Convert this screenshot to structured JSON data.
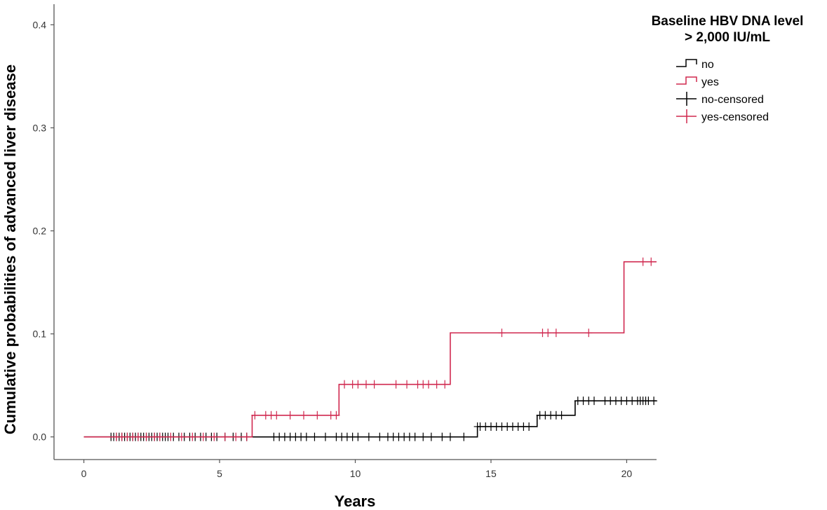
{
  "chart_data": {
    "type": "line",
    "xlabel": "Years",
    "ylabel": "Cumulative probabilities of advanced liver disease",
    "xlim": [
      -1.1,
      21.1
    ],
    "ylim": [
      -0.022,
      0.42
    ],
    "xticks": [
      0,
      5,
      10,
      15,
      20
    ],
    "xtick_labels": [
      "0",
      "5",
      "10",
      "15",
      "20"
    ],
    "yticks": [
      0.0,
      0.1,
      0.2,
      0.3,
      0.4
    ],
    "ytick_labels": [
      "0.0",
      "0.1",
      "0.2",
      "0.3",
      "0.4"
    ],
    "grid": false,
    "legend": {
      "title_line1": "Baseline HBV DNA level",
      "title_line2": "> 2,000 IU/mL",
      "placement": "top-right",
      "entries": [
        {
          "label": "no",
          "kind": "line",
          "color": "#000000"
        },
        {
          "label": "yes",
          "kind": "line",
          "color": "#d0284f"
        },
        {
          "label": "no-censored",
          "kind": "censor",
          "color": "#000000"
        },
        {
          "label": "yes-censored",
          "kind": "censor",
          "color": "#d0284f"
        }
      ]
    },
    "series": [
      {
        "name": "no",
        "color": "#000000",
        "steps": [
          [
            0,
            0.0
          ],
          [
            14.5,
            0.01
          ],
          [
            16.7,
            0.021
          ],
          [
            18.1,
            0.035
          ],
          [
            21.1,
            0.035
          ]
        ],
        "censored": [
          [
            1.0,
            0
          ],
          [
            1.1,
            0
          ],
          [
            1.2,
            0
          ],
          [
            1.3,
            0
          ],
          [
            1.4,
            0
          ],
          [
            1.5,
            0
          ],
          [
            1.6,
            0
          ],
          [
            1.7,
            0
          ],
          [
            1.8,
            0
          ],
          [
            1.9,
            0
          ],
          [
            2.0,
            0
          ],
          [
            2.1,
            0
          ],
          [
            2.2,
            0
          ],
          [
            2.3,
            0
          ],
          [
            2.4,
            0
          ],
          [
            2.5,
            0
          ],
          [
            2.6,
            0
          ],
          [
            2.7,
            0
          ],
          [
            2.8,
            0
          ],
          [
            2.9,
            0
          ],
          [
            3.0,
            0
          ],
          [
            3.1,
            0
          ],
          [
            3.3,
            0
          ],
          [
            3.5,
            0
          ],
          [
            3.7,
            0
          ],
          [
            3.9,
            0
          ],
          [
            4.1,
            0
          ],
          [
            4.3,
            0
          ],
          [
            4.5,
            0
          ],
          [
            4.7,
            0
          ],
          [
            4.9,
            0
          ],
          [
            5.2,
            0
          ],
          [
            5.5,
            0
          ],
          [
            5.8,
            0
          ],
          [
            6.0,
            0
          ],
          [
            7.0,
            0
          ],
          [
            7.2,
            0
          ],
          [
            7.4,
            0
          ],
          [
            7.6,
            0
          ],
          [
            7.8,
            0
          ],
          [
            8.0,
            0
          ],
          [
            8.2,
            0
          ],
          [
            8.5,
            0
          ],
          [
            8.9,
            0
          ],
          [
            9.3,
            0
          ],
          [
            9.5,
            0
          ],
          [
            9.7,
            0
          ],
          [
            9.9,
            0
          ],
          [
            10.1,
            0
          ],
          [
            10.5,
            0
          ],
          [
            10.9,
            0
          ],
          [
            11.2,
            0
          ],
          [
            11.4,
            0
          ],
          [
            11.6,
            0
          ],
          [
            11.8,
            0
          ],
          [
            12.0,
            0
          ],
          [
            12.2,
            0
          ],
          [
            12.5,
            0
          ],
          [
            12.8,
            0
          ],
          [
            13.2,
            0
          ],
          [
            13.5,
            0
          ],
          [
            14.0,
            0
          ],
          [
            14.5,
            0.01
          ],
          [
            14.6,
            0.01
          ],
          [
            14.8,
            0.01
          ],
          [
            15.0,
            0.01
          ],
          [
            15.2,
            0.01
          ],
          [
            15.4,
            0.01
          ],
          [
            15.6,
            0.01
          ],
          [
            15.8,
            0.01
          ],
          [
            16.0,
            0.01
          ],
          [
            16.2,
            0.01
          ],
          [
            16.4,
            0.01
          ],
          [
            16.8,
            0.021
          ],
          [
            17.0,
            0.021
          ],
          [
            17.2,
            0.021
          ],
          [
            17.4,
            0.021
          ],
          [
            17.6,
            0.021
          ],
          [
            18.2,
            0.035
          ],
          [
            18.4,
            0.035
          ],
          [
            18.6,
            0.035
          ],
          [
            18.8,
            0.035
          ],
          [
            19.2,
            0.035
          ],
          [
            19.4,
            0.035
          ],
          [
            19.6,
            0.035
          ],
          [
            19.8,
            0.035
          ],
          [
            20.0,
            0.035
          ],
          [
            20.2,
            0.035
          ],
          [
            20.4,
            0.035
          ],
          [
            20.5,
            0.035
          ],
          [
            20.6,
            0.035
          ],
          [
            20.7,
            0.035
          ],
          [
            20.8,
            0.035
          ],
          [
            21.0,
            0.035
          ]
        ]
      },
      {
        "name": "yes",
        "color": "#d0284f",
        "steps": [
          [
            0,
            0.0
          ],
          [
            6.2,
            0.021
          ],
          [
            9.4,
            0.051
          ],
          [
            13.5,
            0.101
          ],
          [
            19.9,
            0.17
          ],
          [
            21.1,
            0.17
          ]
        ],
        "censored": [
          [
            1.2,
            0
          ],
          [
            1.4,
            0
          ],
          [
            1.6,
            0
          ],
          [
            1.8,
            0
          ],
          [
            2.0,
            0
          ],
          [
            2.3,
            0
          ],
          [
            2.6,
            0
          ],
          [
            2.8,
            0
          ],
          [
            3.2,
            0
          ],
          [
            3.6,
            0
          ],
          [
            4.0,
            0
          ],
          [
            4.4,
            0
          ],
          [
            4.8,
            0
          ],
          [
            5.2,
            0
          ],
          [
            5.6,
            0
          ],
          [
            6.0,
            0
          ],
          [
            6.3,
            0.021
          ],
          [
            6.7,
            0.021
          ],
          [
            6.9,
            0.021
          ],
          [
            7.1,
            0.021
          ],
          [
            7.6,
            0.021
          ],
          [
            8.1,
            0.021
          ],
          [
            8.6,
            0.021
          ],
          [
            9.1,
            0.021
          ],
          [
            9.3,
            0.021
          ],
          [
            9.6,
            0.051
          ],
          [
            9.9,
            0.051
          ],
          [
            10.1,
            0.051
          ],
          [
            10.4,
            0.051
          ],
          [
            10.7,
            0.051
          ],
          [
            11.5,
            0.051
          ],
          [
            11.9,
            0.051
          ],
          [
            12.3,
            0.051
          ],
          [
            12.5,
            0.051
          ],
          [
            12.7,
            0.051
          ],
          [
            13.0,
            0.051
          ],
          [
            13.3,
            0.051
          ],
          [
            15.4,
            0.101
          ],
          [
            16.9,
            0.101
          ],
          [
            17.1,
            0.101
          ],
          [
            17.4,
            0.101
          ],
          [
            18.6,
            0.101
          ],
          [
            20.6,
            0.17
          ],
          [
            20.9,
            0.17
          ]
        ]
      }
    ]
  }
}
